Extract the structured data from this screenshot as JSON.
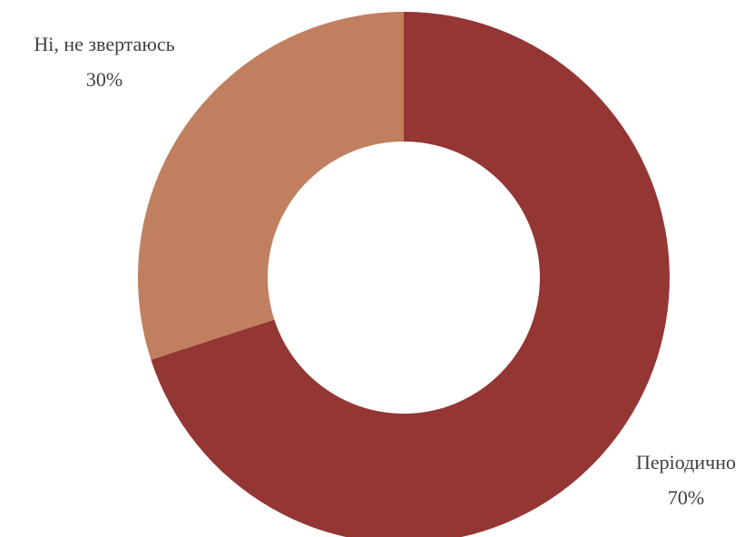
{
  "chart_data": {
    "type": "pie",
    "donut": true,
    "title": "",
    "slices": [
      {
        "label": "Періодично",
        "value": 70,
        "value_label": "70%",
        "color": "#943634"
      },
      {
        "label": "Ні, не звертаюсь",
        "value": 30,
        "value_label": "30%",
        "color": "#c0805f"
      }
    ],
    "start_angle": "12 o'clock",
    "direction": "clockwise",
    "legend": "none",
    "data_labels": "outside"
  }
}
